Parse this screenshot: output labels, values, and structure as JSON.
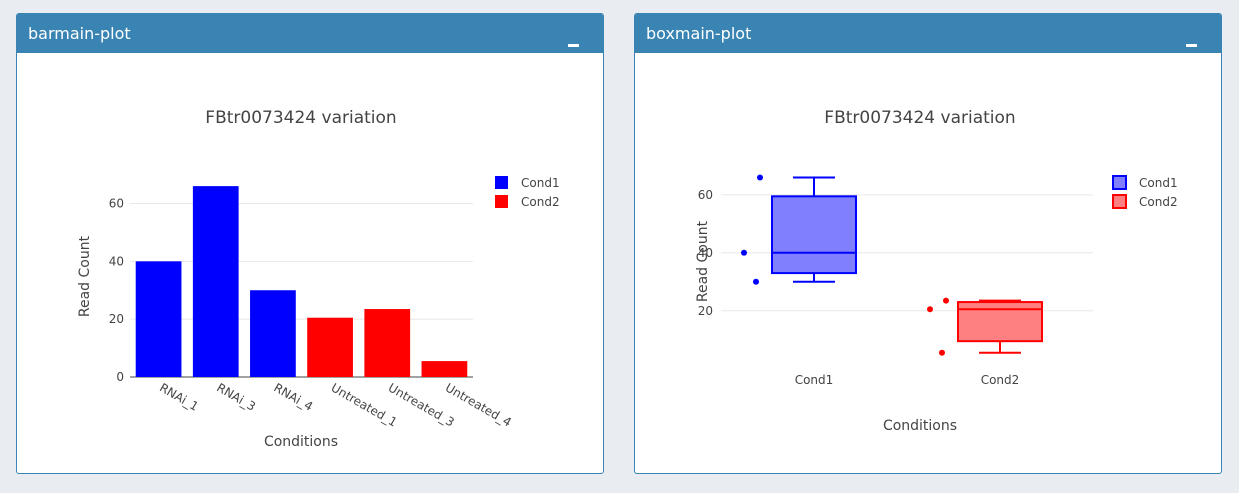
{
  "panels": {
    "bar": {
      "title": "barmain-plot"
    },
    "box": {
      "title": "boxmain-plot"
    }
  },
  "colors": {
    "cond1": "#0000ff",
    "cond2": "#ff0000",
    "header": "#3a84b4"
  },
  "icons": {
    "collapse": "minus-icon"
  },
  "chart_data": [
    {
      "type": "bar",
      "title": "FBtr0073424 variation",
      "xlabel": "Conditions",
      "ylabel": "Read Count",
      "categories": [
        "RNAi_1",
        "RNAi_3",
        "RNAi_4",
        "Untreated_1",
        "Untreated_3",
        "Untreated_4"
      ],
      "values": [
        40,
        66,
        30,
        20.5,
        23.5,
        5.5
      ],
      "groups": [
        "Cond1",
        "Cond1",
        "Cond1",
        "Cond2",
        "Cond2",
        "Cond2"
      ],
      "series": [
        {
          "name": "Cond1",
          "color": "#0000ff"
        },
        {
          "name": "Cond2",
          "color": "#ff0000"
        }
      ],
      "yticks": [
        0,
        20,
        40,
        60
      ],
      "ylim": [
        0,
        69.5
      ],
      "grid": true,
      "legend": "top-right"
    },
    {
      "type": "box",
      "title": "FBtr0073424 variation",
      "xlabel": "Conditions",
      "ylabel": "Read Count",
      "categories": [
        "Cond1",
        "Cond2"
      ],
      "series": [
        {
          "name": "Cond1",
          "color": "#0000ff",
          "points": [
            40,
            66,
            30
          ],
          "min": 30,
          "q1": 33,
          "median": 40,
          "q3": 59.5,
          "max": 66
        },
        {
          "name": "Cond2",
          "color": "#ff0000",
          "points": [
            20.5,
            23.5,
            5.5
          ],
          "min": 5.5,
          "q1": 9.5,
          "median": 20.5,
          "q3": 23,
          "max": 23.5
        }
      ],
      "yticks": [
        20,
        40,
        60
      ],
      "ylim": [
        3,
        71
      ],
      "grid": true,
      "legend": "top-right"
    }
  ]
}
